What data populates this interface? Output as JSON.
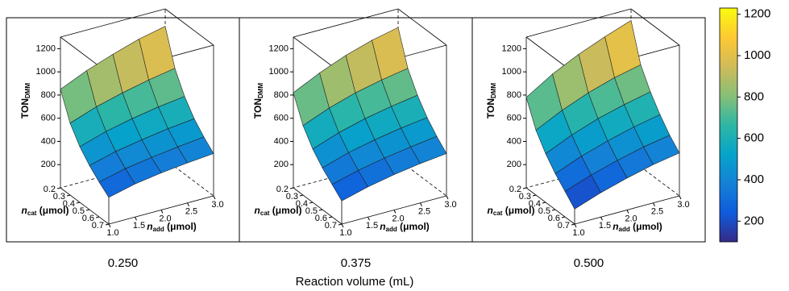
{
  "chart_data": {
    "type": "surface3d",
    "xlabel": "Reaction volume (mL)",
    "zlabel": {
      "main": "TON",
      "sub": "DMM"
    },
    "cat_label": {
      "main": "n",
      "sub": "cat",
      "unit": " (μmol)"
    },
    "add_label": {
      "main": "n",
      "sub": "add",
      "unit": " (μmol)"
    },
    "n_cat": [
      0.2,
      0.3,
      0.4,
      0.5,
      0.6,
      0.7
    ],
    "n_add": [
      1.0,
      1.5,
      2.0,
      2.5,
      3.0
    ],
    "cat_lim": [
      0.2,
      0.7
    ],
    "add_lim": [
      1.0,
      3.0
    ],
    "zlim": [
      0,
      1300
    ],
    "cat_ticks": [
      0.2,
      0.3,
      0.4,
      0.5,
      0.6,
      0.7
    ],
    "add_ticks": [
      {
        "value": 1.0,
        "label": "1.0"
      },
      1.5,
      {
        "value": 2.0,
        "label": "2.0"
      },
      2.5,
      {
        "value": 3.0,
        "label": "3.0"
      }
    ],
    "zticks": [
      200,
      400,
      600,
      800,
      1000,
      1200
    ],
    "panels": [
      {
        "label": "0.250",
        "z": [
          [
            850,
            950,
            1030,
            1100,
            1150
          ],
          [
            620,
            700,
            760,
            810,
            850
          ],
          [
            480,
            550,
            600,
            640,
            670
          ],
          [
            380,
            440,
            480,
            515,
            540
          ],
          [
            300,
            355,
            390,
            420,
            445
          ],
          [
            230,
            285,
            320,
            345,
            365
          ]
        ]
      },
      {
        "label": "0.375",
        "z": [
          [
            820,
            930,
            1020,
            1090,
            1140
          ],
          [
            600,
            690,
            760,
            810,
            850
          ],
          [
            460,
            540,
            600,
            645,
            680
          ],
          [
            360,
            430,
            480,
            520,
            550
          ],
          [
            280,
            340,
            385,
            420,
            450
          ],
          [
            200,
            260,
            305,
            340,
            365
          ]
        ]
      },
      {
        "label": "0.500",
        "z": [
          [
            780,
            920,
            1030,
            1120,
            1200
          ],
          [
            560,
            670,
            760,
            830,
            880
          ],
          [
            420,
            520,
            600,
            660,
            710
          ],
          [
            310,
            400,
            470,
            530,
            575
          ],
          [
            220,
            300,
            365,
            420,
            460
          ],
          [
            130,
            210,
            275,
            330,
            370
          ]
        ]
      }
    ],
    "colormap": [
      "#352a87",
      "#0f5cdd",
      "#1481d6",
      "#06a4ca",
      "#2eb7a4",
      "#87bf77",
      "#d1bb59",
      "#fec832",
      "#f9fb0e"
    ],
    "colorbar": {
      "lim": [
        100,
        1230
      ],
      "ticks": [
        200,
        400,
        600,
        800,
        1000,
        1200
      ]
    }
  }
}
